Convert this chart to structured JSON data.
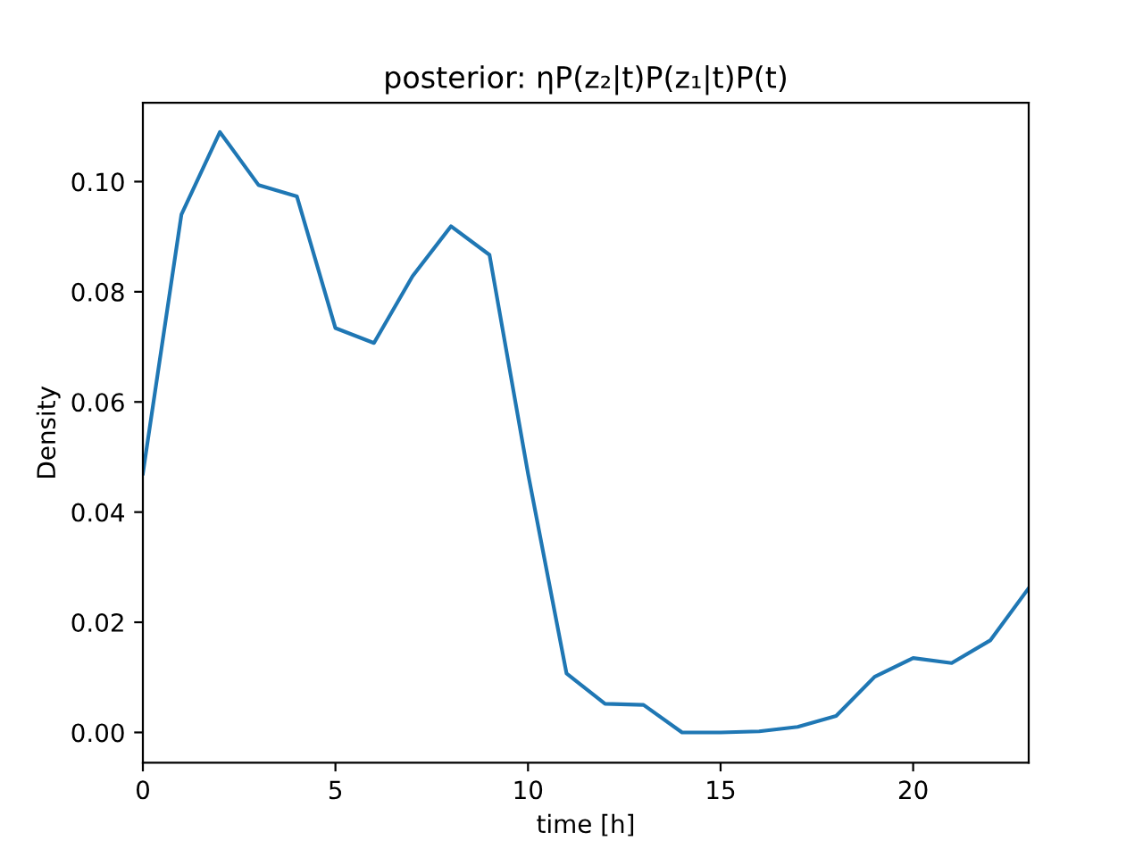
{
  "chart_data": {
    "type": "line",
    "title": "posterior: ηP(z₂|t)P(z₁|t)P(t)",
    "xlabel": "time [h]",
    "ylabel": "Density",
    "x": [
      0,
      1,
      2,
      3,
      4,
      5,
      6,
      7,
      8,
      9,
      10,
      11,
      12,
      13,
      14,
      15,
      16,
      17,
      18,
      19,
      20,
      21,
      22,
      23
    ],
    "series": [
      {
        "color": "#1f77b4",
        "values": [
          0.047,
          0.094,
          0.109,
          0.0994,
          0.0973,
          0.0734,
          0.0707,
          0.0828,
          0.0919,
          0.0867,
          0.047,
          0.0107,
          0.0052,
          0.005,
          0.0,
          0.0,
          0.0002,
          0.001,
          0.003,
          0.0101,
          0.0135,
          0.0126,
          0.0167,
          0.0262
        ]
      }
    ],
    "xlim": [
      0,
      23
    ],
    "xticks": [
      0,
      5,
      10,
      15,
      20
    ],
    "ylim": [
      -0.0055,
      0.1143
    ],
    "yticks": [
      {
        "value": 0.0,
        "label": "0.00"
      },
      {
        "value": 0.02,
        "label": "0.02"
      },
      {
        "value": 0.04,
        "label": "0.04"
      },
      {
        "value": 0.06,
        "label": "0.06"
      },
      {
        "value": 0.08,
        "label": "0.08"
      },
      {
        "value": 0.1,
        "label": "0.10"
      }
    ],
    "grid": false,
    "legend": false
  }
}
